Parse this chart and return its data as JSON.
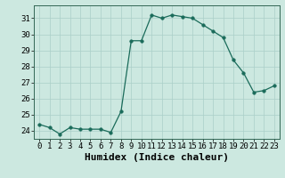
{
  "x": [
    0,
    1,
    2,
    3,
    4,
    5,
    6,
    7,
    8,
    9,
    10,
    11,
    12,
    13,
    14,
    15,
    16,
    17,
    18,
    19,
    20,
    21,
    22,
    23
  ],
  "y": [
    24.4,
    24.2,
    23.8,
    24.2,
    24.1,
    24.1,
    24.1,
    23.9,
    25.2,
    29.6,
    29.6,
    31.2,
    31.0,
    31.2,
    31.1,
    31.0,
    30.6,
    30.2,
    29.8,
    28.4,
    27.6,
    26.4,
    26.5,
    26.8
  ],
  "xlabel": "Humidex (Indice chaleur)",
  "xlim": [
    -0.5,
    23.5
  ],
  "ylim": [
    23.5,
    31.8
  ],
  "yticks": [
    24,
    25,
    26,
    27,
    28,
    29,
    30,
    31
  ],
  "xticks": [
    0,
    1,
    2,
    3,
    4,
    5,
    6,
    7,
    8,
    9,
    10,
    11,
    12,
    13,
    14,
    15,
    16,
    17,
    18,
    19,
    20,
    21,
    22,
    23
  ],
  "line_color": "#1a6b5a",
  "marker_size": 2.5,
  "bg_color": "#cce8e0",
  "grid_color": "#aacfc8",
  "xlabel_fontsize": 8,
  "tick_fontsize": 6.5
}
